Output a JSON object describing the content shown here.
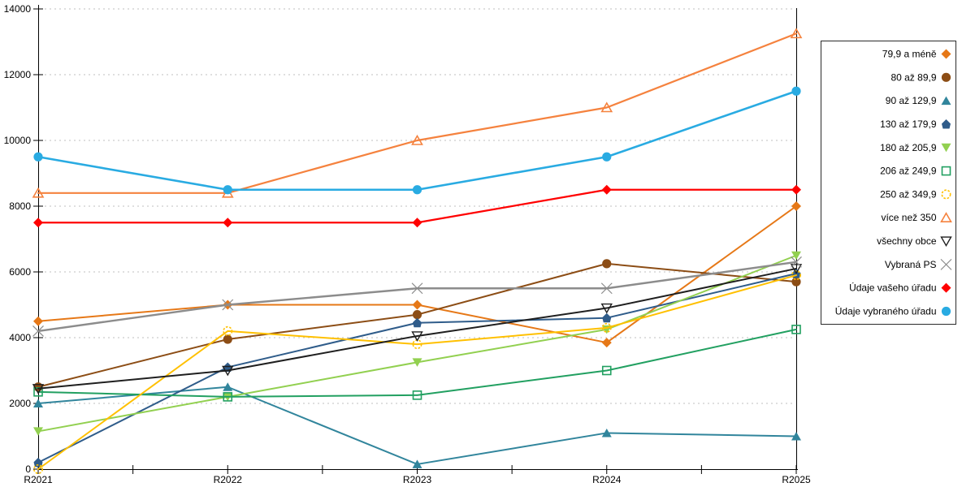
{
  "chart_data": {
    "type": "line",
    "title": "",
    "xlabel": "",
    "ylabel": "",
    "categories": [
      "R2021",
      "R2022",
      "R2023",
      "R2024",
      "R2025"
    ],
    "y_axis": {
      "min": 0,
      "max": 14000,
      "tick_step": 2000,
      "tick_labels": [
        "0",
        "2000",
        "4000",
        "6000",
        "8000",
        "10000",
        "12000",
        "14000"
      ]
    },
    "grid": {
      "horizontal": true,
      "style": "dashed",
      "color": "#BFBFBF"
    },
    "legend": {
      "position": "right",
      "border_color": "#2B2B2B",
      "background": "#FFFFFF"
    },
    "series": [
      {
        "name": "79,9 a méně",
        "marker": "diamond",
        "filled": true,
        "color": "#E67817",
        "line_width": 2,
        "values": [
          4500,
          5000,
          5000,
          3850,
          8000
        ]
      },
      {
        "name": "80 až 89,9",
        "marker": "circle",
        "filled": true,
        "color": "#8C4D15",
        "line_width": 2,
        "values": [
          2500,
          3950,
          4700,
          6250,
          5700
        ]
      },
      {
        "name": "90 až 129,9",
        "marker": "triangle-up",
        "filled": true,
        "color": "#31859C",
        "line_width": 2,
        "values": [
          2000,
          2500,
          150,
          1100,
          1000
        ]
      },
      {
        "name": "130 až 179,9",
        "marker": "pentagon",
        "filled": true,
        "color": "#2F5C8A",
        "line_width": 2,
        "values": [
          200,
          3100,
          4450,
          4600,
          5950
        ]
      },
      {
        "name": "180 až 205,9",
        "marker": "triangle-down",
        "filled": true,
        "color": "#92D050",
        "line_width": 2,
        "values": [
          1150,
          2200,
          3250,
          4250,
          6500
        ]
      },
      {
        "name": "206 až 249,9",
        "marker": "square",
        "filled": false,
        "color": "#22A061",
        "line_width": 2,
        "values": [
          2350,
          2200,
          2250,
          3000,
          4250
        ]
      },
      {
        "name": "250 až 349,9",
        "marker": "circle-open",
        "filled": false,
        "color": "#FFC000",
        "line_width": 2,
        "values": [
          0,
          4200,
          3800,
          4300,
          5900
        ]
      },
      {
        "name": "více než 350",
        "marker": "triangle-open",
        "filled": false,
        "color": "#F5823E",
        "line_width": 2.2,
        "values": [
          8400,
          8400,
          10000,
          11000,
          13250
        ]
      },
      {
        "name": "všechny obce",
        "marker": "triangle-down-open",
        "filled": false,
        "color": "#1F1F1F",
        "line_width": 2,
        "values": [
          2450,
          3000,
          4050,
          4900,
          6100
        ]
      },
      {
        "name": "Vybraná PS",
        "marker": "x",
        "filled": false,
        "color": "#8C8C8C",
        "line_width": 2.4,
        "values": [
          4200,
          5000,
          5500,
          5500,
          6300
        ]
      },
      {
        "name": "Údaje vašeho úřadu",
        "marker": "diamond",
        "filled": true,
        "color": "#FF0000",
        "line_width": 2.2,
        "values": [
          7500,
          7500,
          7500,
          8500,
          8500
        ]
      },
      {
        "name": "Údaje vybraného úřadu",
        "marker": "circle",
        "filled": true,
        "color": "#29ABE2",
        "line_width": 2.6,
        "values": [
          9500,
          8500,
          8500,
          9500,
          11500
        ]
      }
    ]
  }
}
